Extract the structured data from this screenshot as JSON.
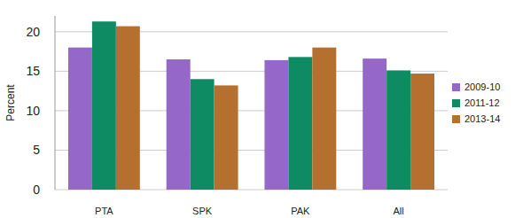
{
  "chart_data": {
    "type": "bar",
    "y_label": "Percent",
    "categories": [
      "PTA",
      "SPK",
      "PAK",
      "All"
    ],
    "series": [
      {
        "name": "2009-10",
        "color": "#9467c8",
        "values": [
          18.0,
          16.5,
          16.4,
          16.6
        ]
      },
      {
        "name": "2011-12",
        "color": "#0f8b63",
        "values": [
          21.3,
          14.0,
          16.8,
          15.1
        ]
      },
      {
        "name": "2013-14",
        "color": "#b5702f",
        "values": [
          20.7,
          13.2,
          18.0,
          14.7
        ]
      }
    ],
    "ylim": [
      0,
      22
    ],
    "yticks": [
      0,
      5,
      10,
      15,
      20
    ],
    "grid": true,
    "legend": "right"
  }
}
